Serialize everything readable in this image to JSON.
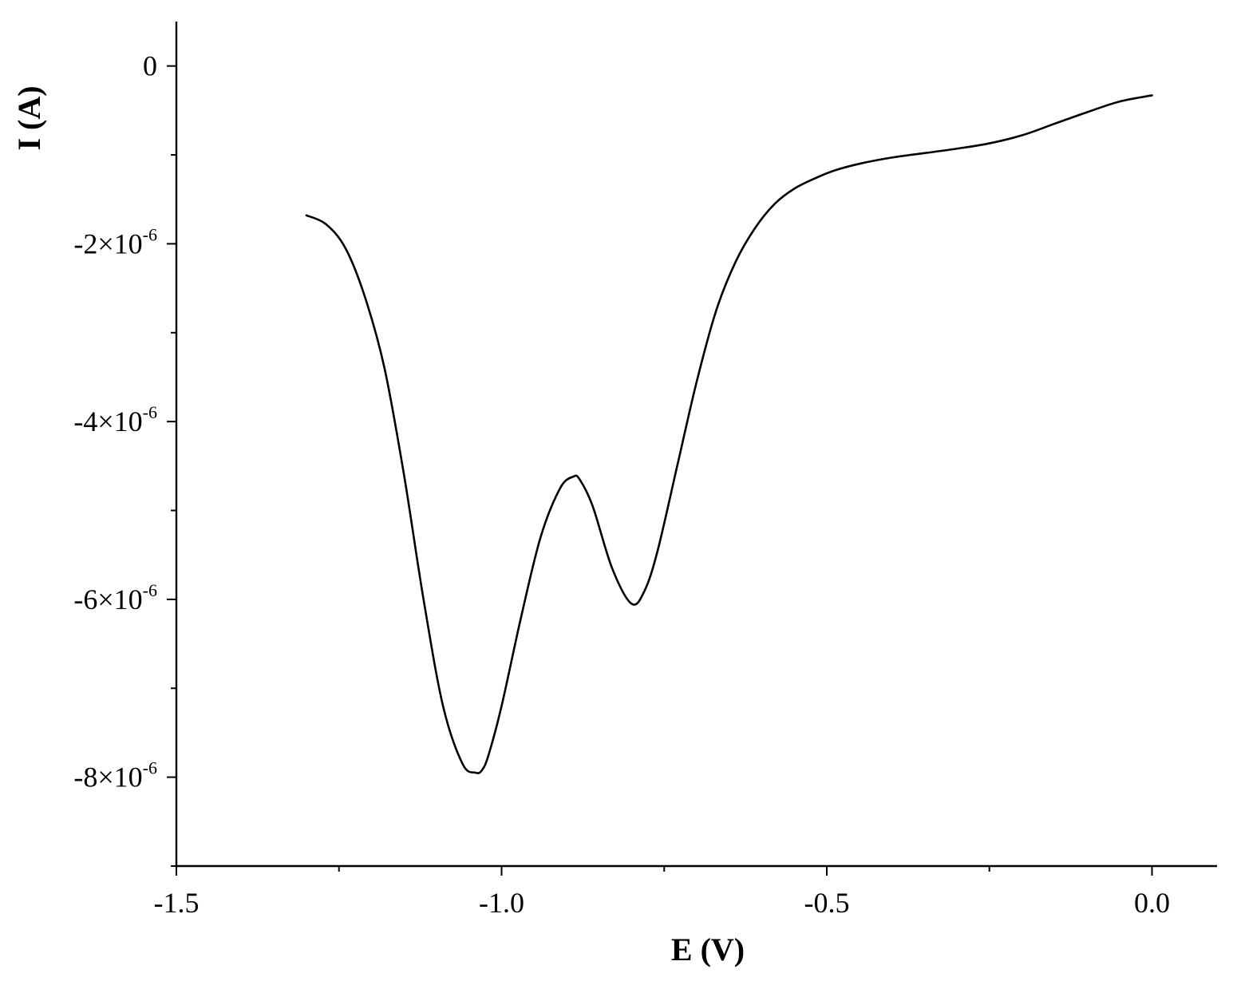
{
  "chart_data": {
    "type": "line",
    "title": "",
    "xlabel": "E (V)",
    "ylabel": "I (A)",
    "xlim": [
      -1.5,
      0.1
    ],
    "ylim": [
      -9e-06,
      5e-07
    ],
    "x_ticks": [
      {
        "value": -1.5,
        "label": "-1.5"
      },
      {
        "value": -1.0,
        "label": "-1.0"
      },
      {
        "value": -0.5,
        "label": "-0.5"
      },
      {
        "value": 0.0,
        "label": "0.0"
      }
    ],
    "x_minor_ticks": [
      -1.25,
      -0.75,
      -0.25
    ],
    "y_ticks": [
      {
        "value": 0,
        "base": "0",
        "exp": ""
      },
      {
        "value": -2e-06,
        "base": "-2×10",
        "exp": "-6"
      },
      {
        "value": -4e-06,
        "base": "-4×10",
        "exp": "-6"
      },
      {
        "value": -6e-06,
        "base": "-6×10",
        "exp": "-6"
      },
      {
        "value": -8e-06,
        "base": "-8×10",
        "exp": "-6"
      }
    ],
    "y_minor_ticks": [
      -1e-06,
      -3e-06,
      -5e-06,
      -7e-06,
      -9e-06
    ],
    "grid": false,
    "legend": "none",
    "series": [
      {
        "color": "#000000",
        "x": [
          -1.3,
          -1.27,
          -1.24,
          -1.21,
          -1.18,
          -1.15,
          -1.12,
          -1.09,
          -1.06,
          -1.04,
          -1.03,
          -1.02,
          -1.0,
          -0.97,
          -0.94,
          -0.91,
          -0.89,
          -0.88,
          -0.86,
          -0.83,
          -0.8,
          -0.78,
          -0.76,
          -0.73,
          -0.7,
          -0.67,
          -0.64,
          -0.61,
          -0.58,
          -0.55,
          -0.52,
          -0.49,
          -0.45,
          -0.4,
          -0.35,
          -0.3,
          -0.25,
          -0.2,
          -0.15,
          -0.1,
          -0.05,
          0.0
        ],
        "y": [
          -1.68e-06,
          -1.78e-06,
          -2.05e-06,
          -2.6e-06,
          -3.4e-06,
          -4.6e-06,
          -6e-06,
          -7.2e-06,
          -7.85e-06,
          -7.95e-06,
          -7.92e-06,
          -7.75e-06,
          -7.2e-06,
          -6.2e-06,
          -5.3e-06,
          -4.75e-06,
          -4.62e-06,
          -4.65e-06,
          -4.95e-06,
          -5.65e-06,
          -6.05e-06,
          -5.9e-06,
          -5.45e-06,
          -4.5e-06,
          -3.55e-06,
          -2.75e-06,
          -2.2e-06,
          -1.82e-06,
          -1.55e-06,
          -1.38e-06,
          -1.27e-06,
          -1.18e-06,
          -1.1e-06,
          -1.03e-06,
          -9.8e-07,
          -9.3e-07,
          -8.7e-07,
          -7.8e-07,
          -6.5e-07,
          -5.2e-07,
          -4e-07,
          -3.3e-07
        ]
      }
    ]
  }
}
